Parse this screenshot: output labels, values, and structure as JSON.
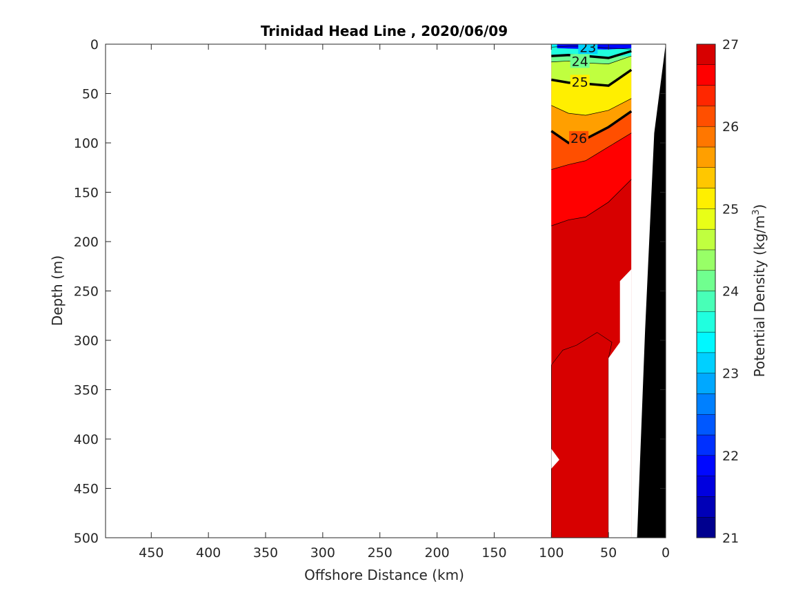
{
  "chart_data": {
    "type": "heatmap",
    "subtype": "filled-contour-section",
    "title": "Trinidad Head Line , 2020/06/09",
    "xlabel": "Offshore Distance (km)",
    "ylabel": "Depth (m)",
    "colorbar_label_main": "Potential Density (kg/m",
    "colorbar_label_sup": "3",
    "colorbar_label_end": ")",
    "xlim": [
      490,
      0
    ],
    "x_reversed": true,
    "ylim": [
      0,
      500
    ],
    "y_reversed": true,
    "x_ticks": [
      450,
      400,
      350,
      300,
      250,
      200,
      150,
      100,
      50,
      0
    ],
    "y_ticks": [
      0,
      50,
      100,
      150,
      200,
      250,
      300,
      350,
      400,
      450,
      500
    ],
    "colorbar_range": [
      21,
      27
    ],
    "colorbar_ticks": [
      21,
      22,
      23,
      24,
      25,
      26,
      27
    ],
    "colorbar_step": 0.25,
    "colormap": [
      "#00008F",
      "#0000B7",
      "#0000DF",
      "#0008FF",
      "#0030FF",
      "#0058FF",
      "#0080FF",
      "#00A8FF",
      "#00D0FF",
      "#00F8FF",
      "#20FFDF",
      "#48FFB7",
      "#70FF8F",
      "#98FF67",
      "#C0FF3F",
      "#E8FF17",
      "#FFEF00",
      "#FFC700",
      "#FF9F00",
      "#FF7700",
      "#FF4F00",
      "#FF2700",
      "#FF0000",
      "#D70000",
      "#AF0000",
      "#9F0000"
    ],
    "data_extent_km": [
      100,
      30
    ],
    "station_profiles": [
      {
        "distance_km": 100,
        "depth_iso": {
          "23.5": 3,
          "24.0": 12,
          "24.5": 18,
          "25.0": 36,
          "25.5": 62,
          "26.0": 88,
          "26.5": 127,
          "26.75": 184
        }
      },
      {
        "distance_km": 85,
        "depth_iso": {
          "23.5": 2,
          "24.0": 11,
          "24.5": 17,
          "25.0": 39,
          "25.5": 70,
          "26.0": 100,
          "26.5": 122,
          "26.75": 178
        }
      },
      {
        "distance_km": 70,
        "depth_iso": {
          "23.5": 2,
          "24.0": 12,
          "24.5": 19,
          "25.0": 40,
          "25.5": 72,
          "26.0": 96,
          "26.5": 118,
          "26.75": 175
        }
      },
      {
        "distance_km": 50,
        "depth_iso": {
          "23.5": 4,
          "24.0": 14,
          "24.5": 20,
          "25.0": 42,
          "25.5": 67,
          "26.0": 84,
          "26.5": 104,
          "26.75": 160
        }
      },
      {
        "distance_km": 30,
        "depth_iso": {
          "23.5": 5,
          "24.0": 7,
          "24.5": 12,
          "25.0": 26,
          "25.5": 55,
          "26.0": 68,
          "26.5": 90,
          "26.75": 137
        }
      }
    ],
    "bold_contours": [
      24,
      25,
      26
    ],
    "contour_labels": [
      {
        "value": "23",
        "x_km": 68,
        "depth": 3
      },
      {
        "value": "24",
        "x_km": 75,
        "depth": 17
      },
      {
        "value": "25",
        "x_km": 75,
        "depth": 38
      },
      {
        "value": "26",
        "x_km": 76,
        "depth": 95
      }
    ],
    "deep_region_value": 26.9,
    "bathymetry_color": "#000000",
    "bathymetry_profile": [
      [
        0,
        0
      ],
      [
        10,
        90
      ],
      [
        18,
        290
      ],
      [
        25,
        500
      ]
    ]
  }
}
